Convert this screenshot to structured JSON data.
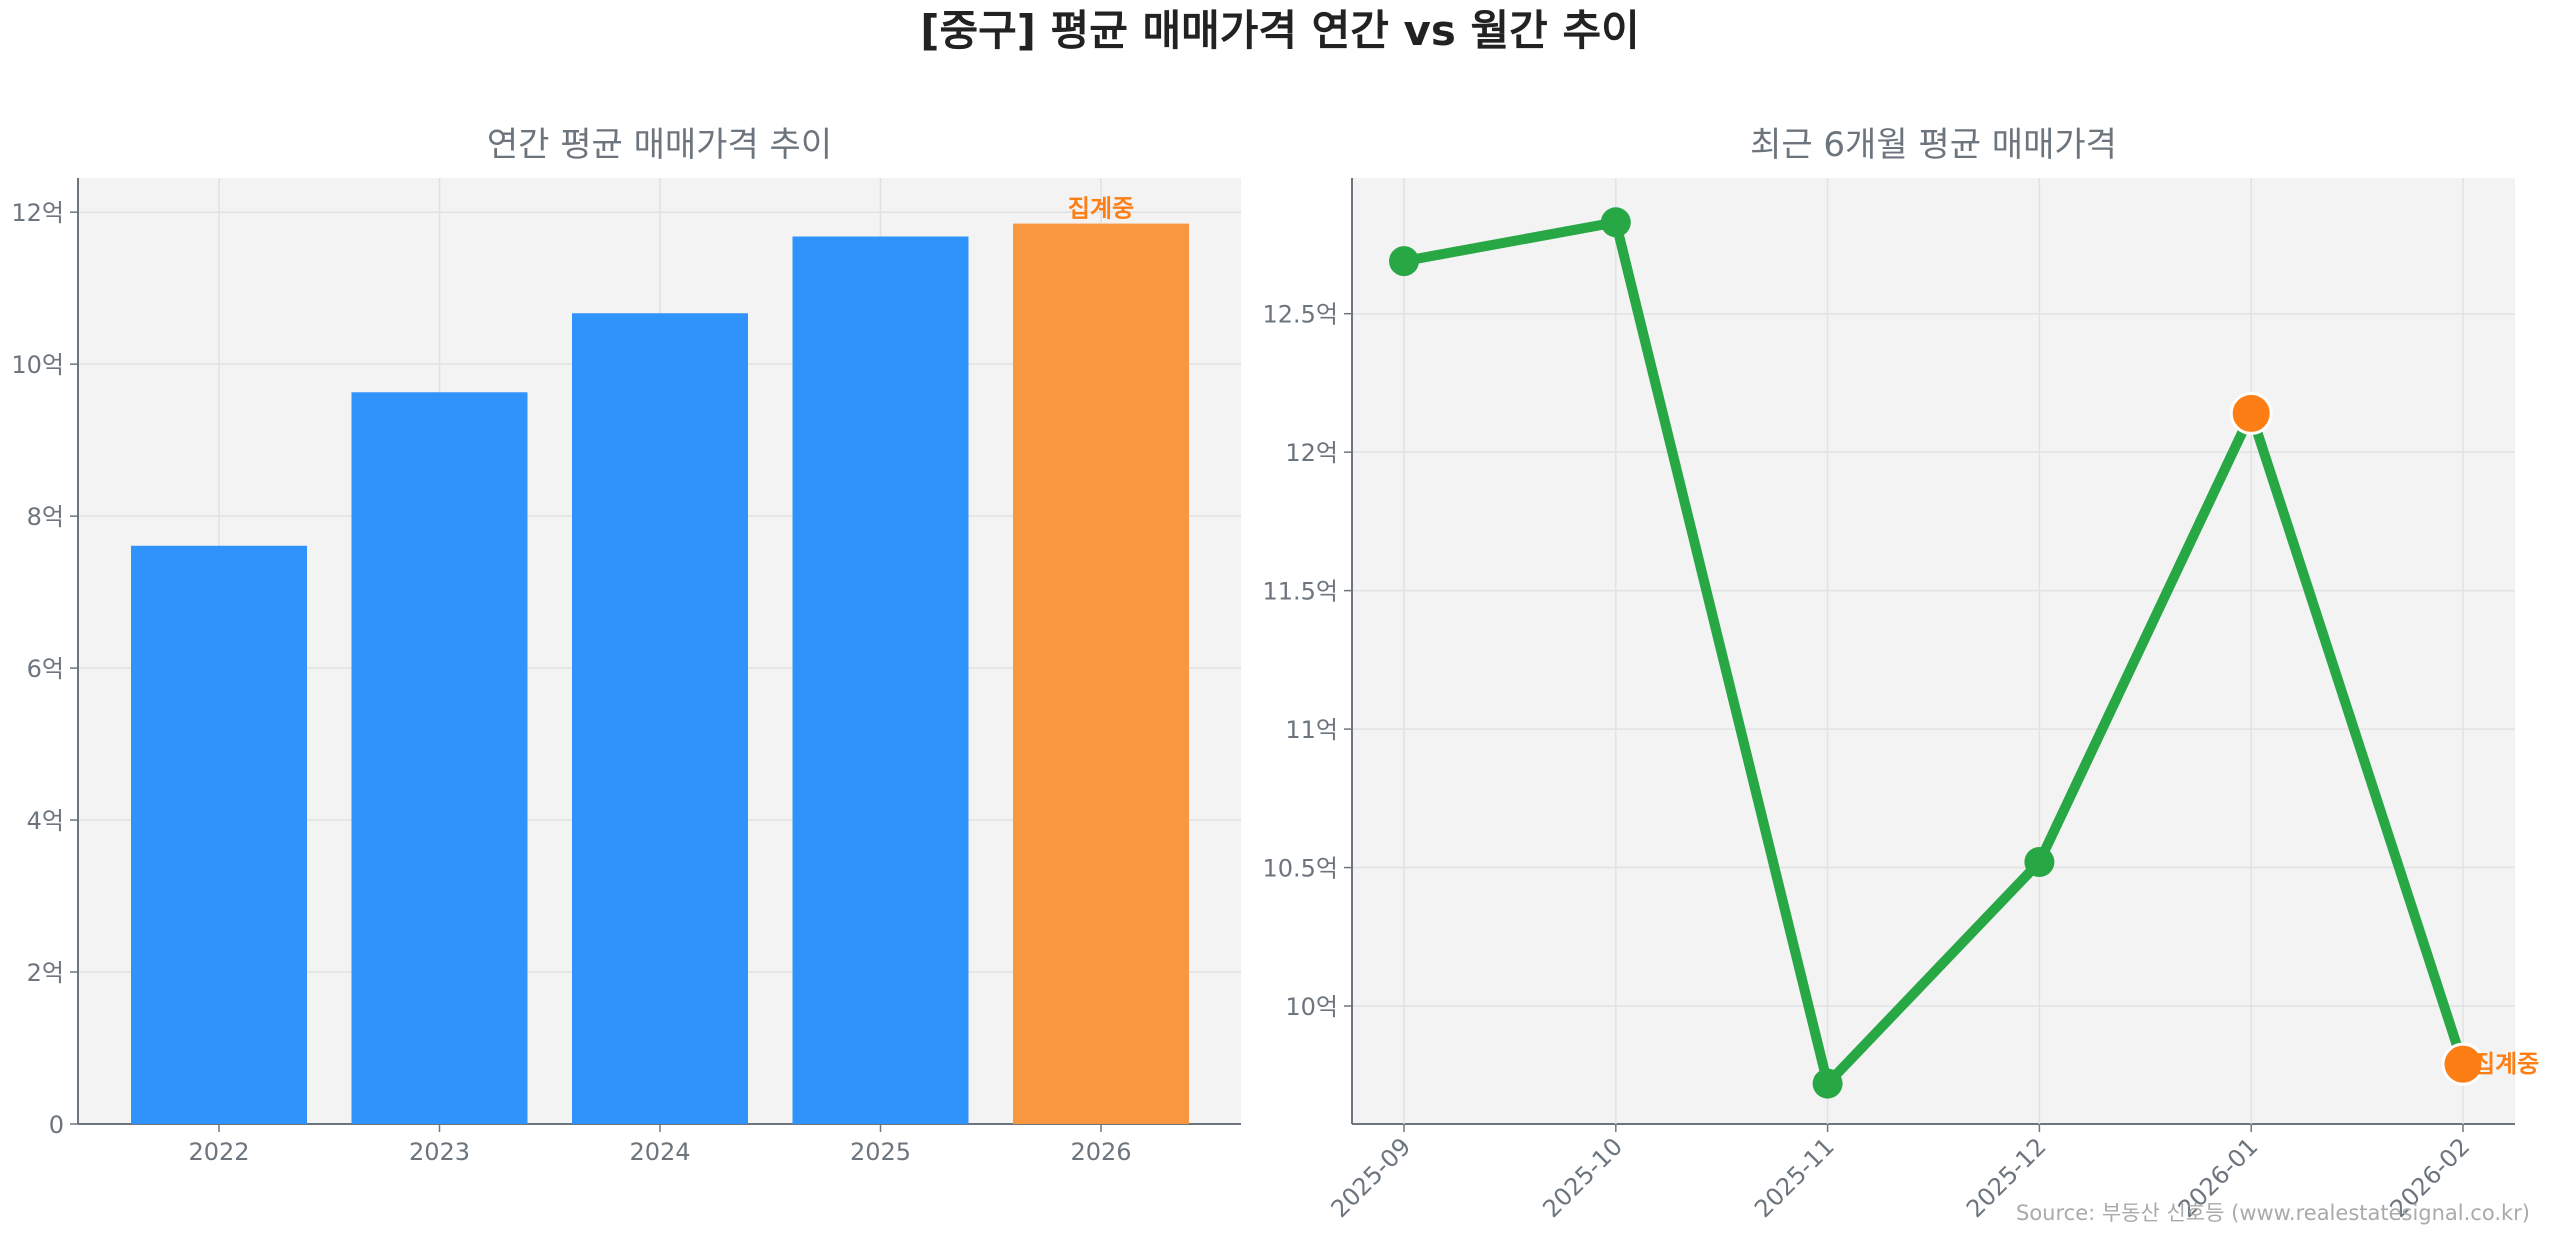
{
  "title": "[중구] 평균 매매가격 연간 vs 월간 추이",
  "source": "Source: 부동산 신호등 (www.realestatesignal.co.kr)",
  "colors": {
    "bar": "#3093fb",
    "bar_highlight": "#f99740",
    "line": "#28a745",
    "highlight": "#fd7e14",
    "axis_text": "#6c757d",
    "plot_bg": "#f3f3f3"
  },
  "chart_data": [
    {
      "type": "bar",
      "title": "연간 평균 매매가격 추이",
      "categories": [
        "2022",
        "2023",
        "2024",
        "2025",
        "2026"
      ],
      "values": [
        7.61,
        9.63,
        10.67,
        11.68,
        11.85
      ],
      "unit": "억",
      "ylim": [
        0,
        12.45
      ],
      "yticks": [
        0,
        2,
        4,
        6,
        8,
        10,
        12
      ],
      "ytick_labels": [
        "0",
        "2억",
        "4억",
        "6억",
        "8억",
        "10억",
        "12억"
      ],
      "grid": true,
      "annotation": {
        "category": "2026",
        "text": "집계중"
      }
    },
    {
      "type": "line",
      "title": "최근 6개월 평균 매매가격",
      "x": [
        "2025-09",
        "2025-10",
        "2025-11",
        "2025-12",
        "2026-01",
        "2026-02"
      ],
      "values": [
        12.69,
        12.83,
        9.72,
        10.52,
        12.14,
        9.79
      ],
      "unit": "억",
      "ylim": [
        9.574,
        12.99
      ],
      "yticks": [
        10,
        10.5,
        11,
        11.5,
        12,
        12.5
      ],
      "ytick_labels": [
        "10억",
        "10.5억",
        "11억",
        "11.5억",
        "12억",
        "12.5억"
      ],
      "grid": true,
      "highlighted_points": [
        "2026-01",
        "2026-02"
      ],
      "annotation": {
        "x": "2026-02",
        "text": "집계중"
      }
    }
  ]
}
